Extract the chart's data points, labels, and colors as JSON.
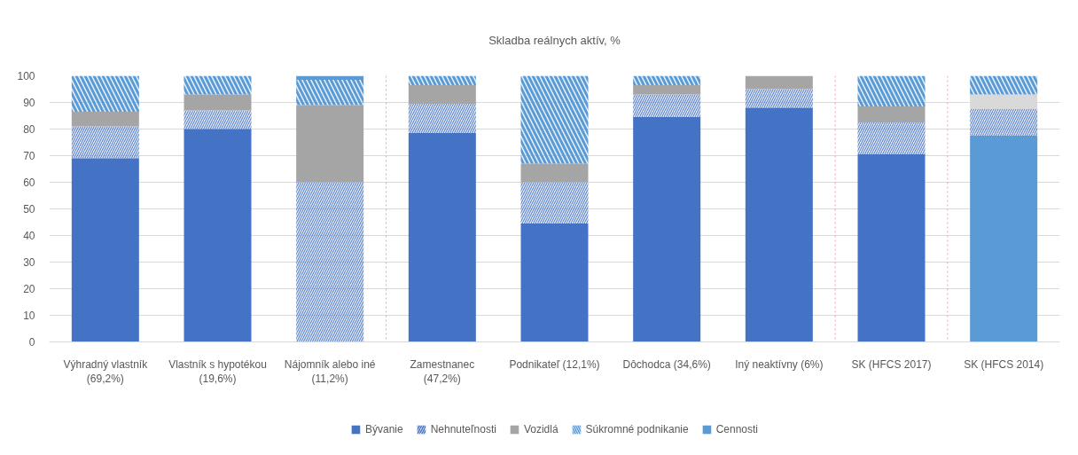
{
  "chart_data": {
    "type": "bar",
    "title": "Skladba reálnych aktív, %",
    "stacked": true,
    "categories": [
      "Výhradný vlastník\n(69,2%)",
      "Vlastník s hypotékou\n(19,6%)",
      "Nájomník alebo iné\n(11,2%)",
      "Zamestnanec\n(47,2%)",
      "Podnikateľ (12,1%)",
      "Dôchodca (34,6%)",
      "Iný neaktívny (6%)",
      "SK (HFCS 2017)",
      "SK (HFCS 2014)"
    ],
    "series": [
      {
        "name": "Bývanie",
        "color": "#4472c4",
        "colors": [
          "#4472c4",
          "#4472c4",
          "#4472c4",
          "#4472c4",
          "#4472c4",
          "#4472c4",
          "#4472c4",
          "#4472c4",
          "#5b9bd5"
        ],
        "values": [
          69,
          80,
          null,
          78.5,
          44.5,
          84.5,
          88,
          70.5,
          77.5
        ]
      },
      {
        "name": "Nehnuteľnosti",
        "color": "#4472c4",
        "values": [
          12,
          7,
          60,
          11,
          15.5,
          8.5,
          7,
          12,
          10
        ]
      },
      {
        "name": "Vozidlá",
        "color": "#a5a5a5",
        "colors": [
          "#a5a5a5",
          "#a5a5a5",
          "#a5a5a5",
          "#a5a5a5",
          "#a5a5a5",
          "#a5a5a5",
          "#a5a5a5",
          "#a5a5a5",
          "#d9d9d9"
        ],
        "values": [
          5.5,
          6,
          29,
          7,
          7,
          3.5,
          5,
          6,
          5.5
        ]
      },
      {
        "name": "Súkromné podnikanie",
        "color": "#5b9bd5",
        "values": [
          13.5,
          7,
          9.5,
          3.5,
          33,
          3.5,
          null,
          11.5,
          7
        ]
      },
      {
        "name": "Cennosti",
        "color": "#5b9bd5",
        "values": [
          null,
          null,
          1.5,
          null,
          null,
          null,
          null,
          null,
          null
        ]
      }
    ],
    "ylim": [
      0,
      100
    ],
    "yticks": [
      0,
      10,
      20,
      30,
      40,
      50,
      60,
      70,
      80,
      90,
      100
    ],
    "grid": "y",
    "legend": "bottom"
  }
}
